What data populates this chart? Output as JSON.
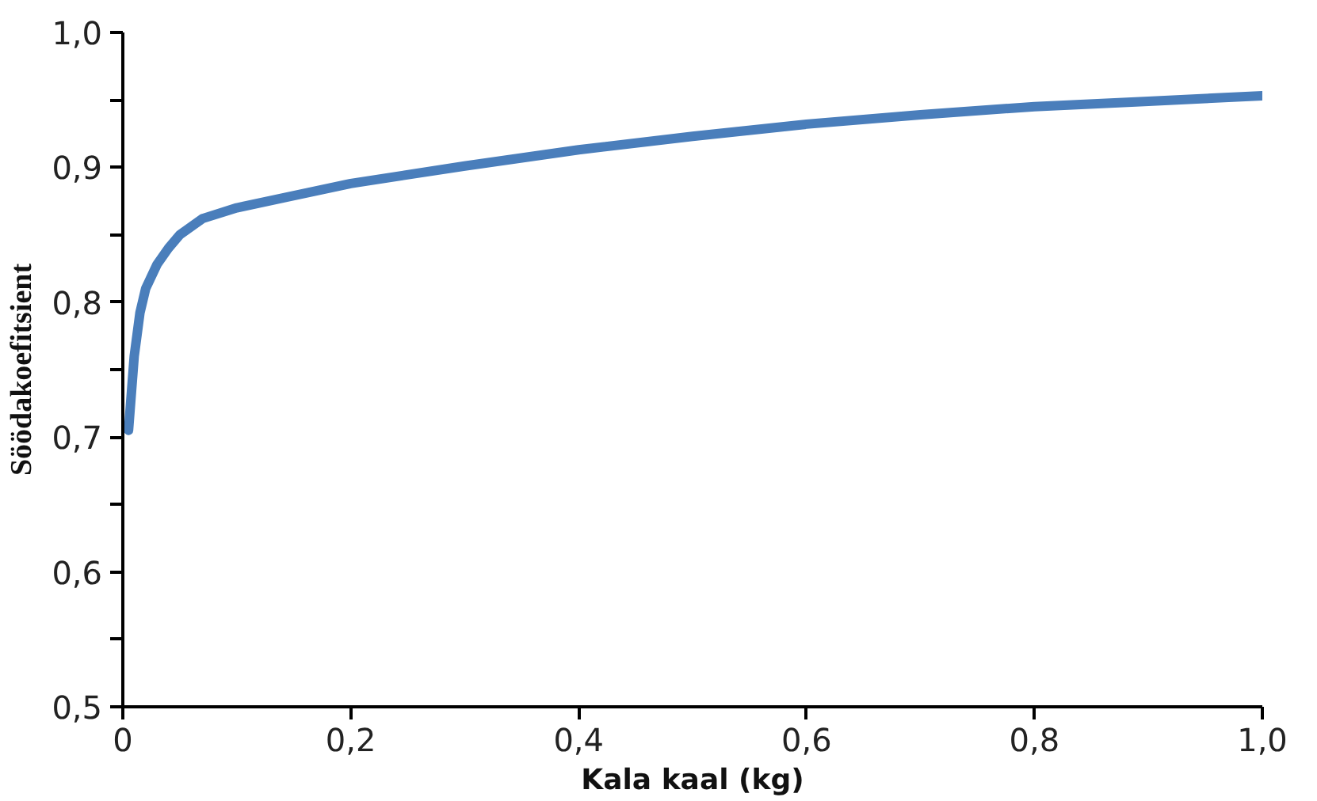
{
  "chart_data": {
    "type": "line",
    "xlabel": "Kala kaal (kg)",
    "ylabel": "Söödakoefitsient",
    "x": [
      0.005,
      0.01,
      0.015,
      0.02,
      0.03,
      0.04,
      0.05,
      0.07,
      0.1,
      0.2,
      0.3,
      0.4,
      0.5,
      0.6,
      0.7,
      0.8,
      0.9,
      1.0
    ],
    "series": [
      {
        "color": "#4a7ebb",
        "values": [
          0.705,
          0.76,
          0.792,
          0.81,
          0.828,
          0.84,
          0.85,
          0.862,
          0.87,
          0.888,
          0.901,
          0.913,
          0.923,
          0.932,
          0.939,
          0.945,
          0.949,
          0.953
        ]
      }
    ],
    "xlim": [
      0,
      1.0
    ],
    "ylim": [
      0.5,
      1.0
    ],
    "xticks": [
      0,
      {
        "value": 0.2,
        "label": "0,2"
      },
      {
        "value": 0.4,
        "label": "0,4"
      },
      {
        "value": 0.6,
        "label": "0,6"
      },
      {
        "value": 0.8,
        "label": "0,8"
      },
      {
        "value": 1.0,
        "label": "1,0"
      }
    ],
    "yticks": [
      {
        "value": 0.5,
        "label": "0,5"
      },
      {
        "value": 0.55,
        "label": null
      },
      {
        "value": 0.6,
        "label": "0,6"
      },
      {
        "value": 0.65,
        "label": null
      },
      {
        "value": 0.7,
        "label": "0,7"
      },
      {
        "value": 0.75,
        "label": null
      },
      {
        "value": 0.8,
        "label": "0,8"
      },
      {
        "value": 0.85,
        "label": null
      },
      {
        "value": 0.9,
        "label": "0,9"
      },
      {
        "value": 0.95,
        "label": null
      },
      {
        "value": 1.0,
        "label": "1,0"
      }
    ],
    "grid": false,
    "marker": "none",
    "line_style": "solid"
  }
}
